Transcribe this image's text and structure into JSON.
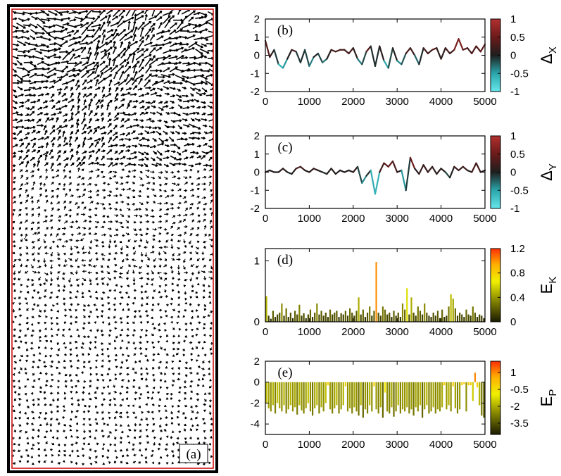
{
  "chart_data": [
    {
      "panel": "(a)",
      "type": "other",
      "label": "(a)",
      "colors": {
        "outer_frame": "#000000",
        "inner_frame": "#cc0000",
        "arrows": "#000000"
      }
    },
    {
      "panel": "(b)",
      "type": "line",
      "label": "(b)",
      "xlim": [
        0,
        5000
      ],
      "ylim": [
        -2,
        2
      ],
      "xticks": [
        "0",
        "1000",
        "2000",
        "3000",
        "4000",
        "5000"
      ],
      "yticks": [
        "-2",
        "-1",
        "0",
        "1",
        "2"
      ],
      "x": [
        0,
        100,
        200,
        300,
        400,
        500,
        600,
        700,
        800,
        900,
        1000,
        1100,
        1200,
        1300,
        1400,
        1500,
        1600,
        1700,
        1800,
        1900,
        2000,
        2100,
        2200,
        2300,
        2400,
        2500,
        2600,
        2700,
        2800,
        2900,
        3000,
        3100,
        3200,
        3300,
        3400,
        3500,
        3600,
        3700,
        3800,
        3900,
        4000,
        4100,
        4200,
        4300,
        4400,
        4500,
        4600,
        4700,
        4800,
        4900,
        5000
      ],
      "values": [
        0.8,
        -0.1,
        0.3,
        -0.5,
        -0.7,
        -0.2,
        0.3,
        0.2,
        -0.4,
        0.3,
        -0.6,
        -0.1,
        0.1,
        -0.4,
        -0.2,
        0.3,
        0.2,
        0.3,
        0.3,
        0.1,
        0.4,
        -0.2,
        -0.5,
        0.2,
        0.5,
        -0.6,
        0.5,
        -0.3,
        -0.7,
        0.4,
        -0.3,
        -0.5,
        0.1,
        0.4,
        0.0,
        -0.5,
        0.4,
        0.1,
        0.3,
        0.4,
        -0.2,
        0.4,
        0.1,
        0.3,
        0.9,
        0.3,
        0.4,
        0.1,
        0.5,
        0.2,
        0.6
      ],
      "colorbar": {
        "label": "Δ",
        "subscript": "X",
        "range": [
          -1,
          1
        ],
        "ticks": [
          "1",
          "0.5",
          "0",
          "-0.5",
          "-1"
        ],
        "colors": [
          "#66e8ec",
          "#2aa6ab",
          "#1e1e1e",
          "#6b1a1a",
          "#b33030"
        ]
      }
    },
    {
      "panel": "(c)",
      "type": "line",
      "label": "(c)",
      "xlim": [
        0,
        5000
      ],
      "ylim": [
        -2,
        2
      ],
      "xticks": [
        "0",
        "1000",
        "2000",
        "3000",
        "4000",
        "5000"
      ],
      "yticks": [
        "-2",
        "-1",
        "0",
        "1",
        "2"
      ],
      "x": [
        0,
        100,
        200,
        300,
        400,
        500,
        600,
        700,
        800,
        900,
        1000,
        1100,
        1200,
        1300,
        1400,
        1500,
        1600,
        1700,
        1800,
        1900,
        2000,
        2100,
        2200,
        2300,
        2400,
        2500,
        2600,
        2700,
        2800,
        2900,
        3000,
        3100,
        3200,
        3300,
        3400,
        3500,
        3600,
        3700,
        3800,
        3900,
        4000,
        4100,
        4200,
        4300,
        4400,
        4500,
        4600,
        4700,
        4800,
        4900,
        5000
      ],
      "values": [
        0.0,
        0.1,
        0.0,
        0.0,
        0.2,
        0.0,
        -0.1,
        0.2,
        0.3,
        0.1,
        0.0,
        0.2,
        0.1,
        0.0,
        -0.1,
        0.2,
        -0.1,
        0.1,
        0.0,
        0.1,
        0.0,
        0.3,
        -0.6,
        -0.2,
        0.1,
        -1.2,
        0.0,
        0.5,
        0.3,
        0.6,
        0.0,
        0.1,
        -1.0,
        0.8,
        0.2,
        -0.1,
        0.4,
        0.0,
        0.3,
        -0.1,
        0.2,
        0.0,
        -0.3,
        0.3,
        0.1,
        0.3,
        0.1,
        0.0,
        0.5,
        0.0,
        0.1
      ],
      "colorbar": {
        "label": "Δ",
        "subscript": "Y",
        "range": [
          -1,
          1
        ],
        "ticks": [
          "1",
          "0.5",
          "0",
          "-0.5",
          "-1"
        ],
        "colors": [
          "#66e8ec",
          "#2aa6ab",
          "#1e1e1e",
          "#6b1a1a",
          "#b33030"
        ]
      }
    },
    {
      "panel": "(d)",
      "type": "bar",
      "label": "(d)",
      "xlim": [
        0,
        5000
      ],
      "ylim": [
        0,
        1.2
      ],
      "xticks": [
        "0",
        "1000",
        "2000",
        "3000",
        "4000",
        "5000"
      ],
      "yticks": [
        "0",
        "1"
      ],
      "bar_width": 35,
      "x": [
        25,
        75,
        125,
        175,
        225,
        275,
        325,
        375,
        425,
        475,
        525,
        575,
        625,
        675,
        725,
        775,
        825,
        875,
        925,
        975,
        1025,
        1075,
        1125,
        1175,
        1225,
        1275,
        1325,
        1375,
        1425,
        1475,
        1525,
        1575,
        1625,
        1675,
        1725,
        1775,
        1825,
        1875,
        1925,
        1975,
        2025,
        2075,
        2125,
        2175,
        2225,
        2275,
        2325,
        2375,
        2425,
        2475,
        2525,
        2575,
        2625,
        2675,
        2725,
        2775,
        2825,
        2875,
        2925,
        2975,
        3025,
        3075,
        3125,
        3175,
        3225,
        3275,
        3325,
        3375,
        3425,
        3475,
        3525,
        3575,
        3625,
        3675,
        3725,
        3775,
        3825,
        3875,
        3925,
        3975,
        4025,
        4075,
        4125,
        4175,
        4225,
        4275,
        4325,
        4375,
        4425,
        4475,
        4525,
        4575,
        4625,
        4675,
        4725,
        4775,
        4825,
        4875,
        4925,
        4975
      ],
      "values": [
        0.42,
        0.1,
        0.05,
        0.18,
        0.08,
        0.12,
        0.15,
        0.3,
        0.1,
        0.22,
        0.08,
        0.15,
        0.06,
        0.18,
        0.12,
        0.28,
        0.1,
        0.14,
        0.06,
        0.12,
        0.2,
        0.08,
        0.15,
        0.3,
        0.12,
        0.18,
        0.1,
        0.15,
        0.08,
        0.2,
        0.12,
        0.15,
        0.18,
        0.08,
        0.14,
        0.12,
        0.18,
        0.1,
        0.22,
        0.15,
        0.1,
        0.18,
        0.4,
        0.12,
        0.2,
        0.08,
        0.15,
        0.25,
        0.1,
        0.18,
        0.98,
        0.15,
        0.1,
        0.25,
        0.2,
        0.12,
        0.15,
        0.08,
        0.18,
        0.1,
        0.15,
        0.08,
        0.3,
        0.2,
        0.55,
        0.12,
        0.4,
        0.15,
        0.1,
        0.25,
        0.18,
        0.12,
        0.3,
        0.15,
        0.1,
        0.08,
        0.15,
        0.1,
        0.18,
        0.06,
        0.2,
        0.08,
        0.1,
        0.25,
        0.45,
        0.38,
        0.22,
        0.1,
        0.15,
        0.12,
        0.08,
        0.2,
        0.12,
        0.1,
        0.25,
        0.15,
        0.08,
        0.12,
        0.1,
        0.06
      ],
      "colorbar": {
        "label": "E",
        "subscript": "K",
        "range": [
          0,
          1.2
        ],
        "ticks": [
          "1.2",
          "0.8",
          "0.4",
          "0"
        ],
        "colors": [
          "#1a1a00",
          "#8a8a00",
          "#f0f000",
          "#ffb000",
          "#ff3000"
        ]
      }
    },
    {
      "panel": "(e)",
      "type": "bar",
      "label": "(e)",
      "xlim": [
        0,
        5000
      ],
      "ylim": [
        -5,
        2
      ],
      "xticks": [
        "0",
        "1000",
        "2000",
        "3000",
        "4000",
        "5000"
      ],
      "yticks": [
        "-4",
        "-2",
        "0",
        "2"
      ],
      "bar_width": 35,
      "x": [
        25,
        75,
        125,
        175,
        225,
        275,
        325,
        375,
        425,
        475,
        525,
        575,
        625,
        675,
        725,
        775,
        825,
        875,
        925,
        975,
        1025,
        1075,
        1125,
        1175,
        1225,
        1275,
        1325,
        1375,
        1425,
        1475,
        1525,
        1575,
        1625,
        1675,
        1725,
        1775,
        1825,
        1875,
        1925,
        1975,
        2025,
        2075,
        2125,
        2175,
        2225,
        2275,
        2325,
        2375,
        2425,
        2475,
        2525,
        2575,
        2625,
        2675,
        2725,
        2775,
        2825,
        2875,
        2925,
        2975,
        3025,
        3075,
        3125,
        3175,
        3225,
        3275,
        3325,
        3375,
        3425,
        3475,
        3525,
        3575,
        3625,
        3675,
        3725,
        3775,
        3825,
        3875,
        3925,
        3975,
        4025,
        4075,
        4125,
        4175,
        4225,
        4275,
        4325,
        4375,
        4425,
        4475,
        4525,
        4575,
        4625,
        4675,
        4725,
        4775,
        4825,
        4875,
        4925,
        4975
      ],
      "values": [
        -2.0,
        -2.5,
        -2.8,
        -2.2,
        -3.0,
        -2.0,
        -2.5,
        -2.8,
        -2.2,
        -3.0,
        -2.6,
        -2.2,
        -2.8,
        -2.4,
        -3.1,
        -2.2,
        -2.7,
        -3.0,
        -2.5,
        -2.0,
        -2.8,
        -3.2,
        -2.5,
        -2.2,
        -3.0,
        -2.4,
        -2.8,
        -2.0,
        -0.3,
        -2.6,
        -3.0,
        -2.5,
        -2.2,
        -3.0,
        -2.6,
        -2.2,
        -0.4,
        -2.8,
        -2.5,
        -3.0,
        -2.4,
        -2.8,
        -3.2,
        -2.2,
        -3.4,
        -2.6,
        -3.0,
        -2.2,
        -2.8,
        -0.4,
        -2.6,
        -3.0,
        -2.4,
        -3.4,
        -1.0,
        -2.8,
        -3.0,
        -2.4,
        -3.3,
        -2.8,
        -2.2,
        -3.0,
        -2.6,
        -2.8,
        -2.4,
        -3.0,
        -2.6,
        -3.2,
        -2.4,
        -2.8,
        -2.2,
        -3.4,
        -2.6,
        -2.2,
        -3.0,
        -2.8,
        -2.4,
        -3.0,
        -2.6,
        -2.8,
        -2.4,
        -0.3,
        -2.6,
        -2.2,
        -2.8,
        -0.4,
        -2.5,
        -3.0,
        -2.6,
        -0.3,
        -0.2,
        -2.8,
        -0.3,
        -0.3,
        -1.8,
        0.9,
        -0.5,
        -2.2,
        -3.2,
        -3.4
      ],
      "colorbar": {
        "label": "E",
        "subscript": "P",
        "range": [
          -4.5,
          2
        ],
        "ticks": [
          "1",
          "-0.5",
          "-2",
          "-3.5"
        ],
        "colors": [
          "#1a1a00",
          "#8a8a00",
          "#f0f000",
          "#ffb000",
          "#ff3000"
        ]
      }
    }
  ]
}
